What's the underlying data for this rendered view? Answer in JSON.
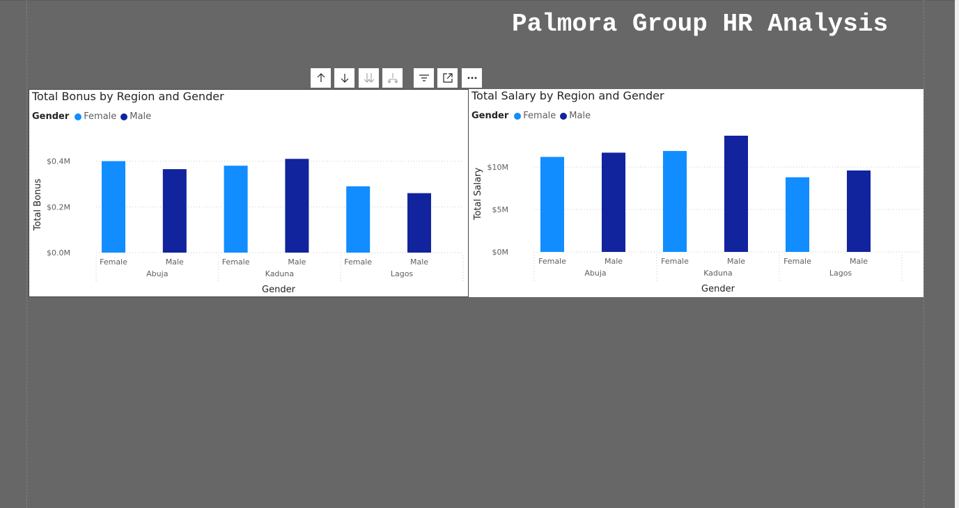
{
  "report": {
    "title": "Palmora Group HR Analysis"
  },
  "toolbar": {
    "buttons": [
      {
        "name": "drill-up-icon"
      },
      {
        "name": "drill-down-icon"
      },
      {
        "name": "next-level-icon"
      },
      {
        "name": "expand-hierarchy-icon"
      },
      {
        "name": "filter-icon"
      },
      {
        "name": "focus-mode-icon"
      },
      {
        "name": "more-options-icon"
      }
    ]
  },
  "colors": {
    "female": "#118dff",
    "male": "#12239e",
    "background": "#676767",
    "grid": "#c8c6c4"
  },
  "charts": {
    "bonus": {
      "legend_title": "Gender",
      "legend_female": "Female",
      "legend_male": "Male"
    },
    "salary": {
      "legend_title": "Gender",
      "legend_female": "Female",
      "legend_male": "Male"
    }
  },
  "chart_data": [
    {
      "type": "bar",
      "title": "Total Bonus by Region and Gender",
      "xlabel": "Gender",
      "ylabel": "Total Bonus",
      "regions": [
        "Abuja",
        "Kaduna",
        "Lagos"
      ],
      "categories": [
        "Female",
        "Male",
        "Female",
        "Male",
        "Female",
        "Male"
      ],
      "series": [
        {
          "name": "Female",
          "values": [
            0.4,
            null,
            0.38,
            null,
            0.29,
            null
          ]
        },
        {
          "name": "Male",
          "values": [
            null,
            0.365,
            null,
            0.41,
            null,
            0.26
          ]
        }
      ],
      "ylim": [
        0,
        0.42
      ],
      "yticks": [
        0,
        0.2,
        0.4
      ],
      "ytick_labels": [
        "$0.0M",
        "$0.2M",
        "$0.4M"
      ],
      "grid": true,
      "legend": "top-left"
    },
    {
      "type": "bar",
      "title": "Total Salary by Region and Gender",
      "xlabel": "Gender",
      "ylabel": "Total Salary",
      "regions": [
        "Abuja",
        "Kaduna",
        "Lagos"
      ],
      "categories": [
        "Female",
        "Male",
        "Female",
        "Male",
        "Female",
        "Male"
      ],
      "series": [
        {
          "name": "Female",
          "values": [
            11.2,
            null,
            11.9,
            null,
            8.8,
            null
          ]
        },
        {
          "name": "Male",
          "values": [
            null,
            11.7,
            null,
            13.7,
            null,
            9.6
          ]
        }
      ],
      "ylim": [
        0,
        13.7
      ],
      "yticks": [
        0,
        5,
        10
      ],
      "ytick_labels": [
        "$0M",
        "$5M",
        "$10M"
      ],
      "grid": true,
      "legend": "top-left"
    }
  ]
}
